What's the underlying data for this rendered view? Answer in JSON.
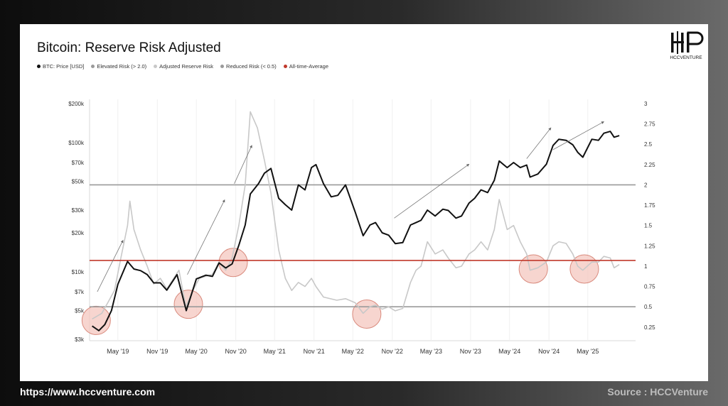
{
  "footer": {
    "url": "https://www.hccventure.com",
    "source": "Source : HCCVenture"
  },
  "logo": {
    "text": "HCCVENTURE",
    "icon": "hcc-monogram-icon"
  },
  "colors": {
    "price": "#111111",
    "elevated": "#9a9a9a",
    "adjusted": "#c8c8c8",
    "reduced": "#9a9a9a",
    "average": "#c0392b",
    "highlight": "#f4c7bf"
  },
  "chart_data": {
    "type": "line",
    "title": "Bitcoin: Reserve Risk Adjusted",
    "legend": [
      {
        "name": "BTC: Price [USD]",
        "color": "#111111"
      },
      {
        "name": "Elevated Risk (> 2.0)",
        "color": "#9a9a9a"
      },
      {
        "name": "Adjusted Reserve Risk",
        "color": "#c8c8c8"
      },
      {
        "name": "Reduced Risk (< 0.5)",
        "color": "#9a9a9a"
      },
      {
        "name": "All-time-Average",
        "color": "#c0392b"
      }
    ],
    "legend_position": "top-left",
    "x_ticks": [
      "May '19",
      "Nov '19",
      "May '20",
      "Nov '20",
      "May '21",
      "Nov '21",
      "May '22",
      "Nov '22",
      "May '23",
      "Nov '23",
      "May '24",
      "Nov '24",
      "May '25"
    ],
    "y_left": {
      "scale": "log",
      "range": [
        3000,
        200000
      ],
      "ticks": [
        "$3k",
        "$5k",
        "$7k",
        "$10k",
        "$20k",
        "$30k",
        "$50k",
        "$70k",
        "$100k",
        "$200k"
      ]
    },
    "y_right": {
      "scale": "linear",
      "range": [
        0.1,
        3
      ],
      "ticks": [
        "0.25",
        "0.5",
        "0.75",
        "1",
        "1.25",
        "1.5",
        "1.75",
        "2",
        "2.25",
        "2.5",
        "2.75",
        "3"
      ]
    },
    "elevated_risk_level": 2.0,
    "reduced_risk_level": 0.5,
    "all_time_average": 1.07,
    "price": {
      "name": "BTC: Price [USD]",
      "points": [
        [
          "2019-01-01",
          3800
        ],
        [
          "2019-02-01",
          3500
        ],
        [
          "2019-03-01",
          3900
        ],
        [
          "2019-04-01",
          5000
        ],
        [
          "2019-05-01",
          8000
        ],
        [
          "2019-06-15",
          12000
        ],
        [
          "2019-07-15",
          10500
        ],
        [
          "2019-08-15",
          10200
        ],
        [
          "2019-09-15",
          9500
        ],
        [
          "2019-10-15",
          8200
        ],
        [
          "2019-11-15",
          8200
        ],
        [
          "2019-12-15",
          7200
        ],
        [
          "2020-02-01",
          9500
        ],
        [
          "2020-03-15",
          5000
        ],
        [
          "2020-05-01",
          8800
        ],
        [
          "2020-06-15",
          9400
        ],
        [
          "2020-07-15",
          9200
        ],
        [
          "2020-08-15",
          11700
        ],
        [
          "2020-09-15",
          10700
        ],
        [
          "2020-10-15",
          11500
        ],
        [
          "2020-11-15",
          16000
        ],
        [
          "2020-12-15",
          23000
        ],
        [
          "2021-01-08",
          40000
        ],
        [
          "2021-02-15",
          48000
        ],
        [
          "2021-03-15",
          58000
        ],
        [
          "2021-04-14",
          63000
        ],
        [
          "2021-05-20",
          37000
        ],
        [
          "2021-06-20",
          33000
        ],
        [
          "2021-07-20",
          30000
        ],
        [
          "2021-08-20",
          47000
        ],
        [
          "2021-09-20",
          43000
        ],
        [
          "2021-10-20",
          64000
        ],
        [
          "2021-11-10",
          67500
        ],
        [
          "2021-12-15",
          48000
        ],
        [
          "2022-01-20",
          38000
        ],
        [
          "2022-02-20",
          39000
        ],
        [
          "2022-03-28",
          47000
        ],
        [
          "2022-05-12",
          29000
        ],
        [
          "2022-06-18",
          19000
        ],
        [
          "2022-07-20",
          23000
        ],
        [
          "2022-08-15",
          24000
        ],
        [
          "2022-09-15",
          20000
        ],
        [
          "2022-10-15",
          19200
        ],
        [
          "2022-11-15",
          16500
        ],
        [
          "2022-12-20",
          16800
        ],
        [
          "2023-01-25",
          23000
        ],
        [
          "2023-02-20",
          24000
        ],
        [
          "2023-03-15",
          25000
        ],
        [
          "2023-04-14",
          30000
        ],
        [
          "2023-05-20",
          27000
        ],
        [
          "2023-06-25",
          30500
        ],
        [
          "2023-07-20",
          29800
        ],
        [
          "2023-08-25",
          26000
        ],
        [
          "2023-09-20",
          27000
        ],
        [
          "2023-10-25",
          34000
        ],
        [
          "2023-11-20",
          37000
        ],
        [
          "2023-12-20",
          43000
        ],
        [
          "2024-01-20",
          41000
        ],
        [
          "2024-02-20",
          51000
        ],
        [
          "2024-03-14",
          72000
        ],
        [
          "2024-04-20",
          64000
        ],
        [
          "2024-05-20",
          70000
        ],
        [
          "2024-06-20",
          64000
        ],
        [
          "2024-07-20",
          67000
        ],
        [
          "2024-08-05",
          54000
        ],
        [
          "2024-09-10",
          57000
        ],
        [
          "2024-10-20",
          68000
        ],
        [
          "2024-11-20",
          95000
        ],
        [
          "2024-12-17",
          106000
        ],
        [
          "2025-01-20",
          104000
        ],
        [
          "2025-02-20",
          96000
        ],
        [
          "2025-03-15",
          84000
        ],
        [
          "2025-04-08",
          77000
        ],
        [
          "2025-05-20",
          106000
        ],
        [
          "2025-06-20",
          104000
        ],
        [
          "2025-07-15",
          118000
        ],
        [
          "2025-08-14",
          122000
        ],
        [
          "2025-09-01",
          110000
        ],
        [
          "2025-09-25",
          113000
        ]
      ]
    },
    "adjusted_reserve_risk": {
      "name": "Adjusted Reserve Risk",
      "points": [
        [
          "2019-01-01",
          0.35
        ],
        [
          "2019-02-15",
          0.42
        ],
        [
          "2019-03-15",
          0.55
        ],
        [
          "2019-04-15",
          0.7
        ],
        [
          "2019-05-15",
          1.1
        ],
        [
          "2019-06-15",
          1.5
        ],
        [
          "2019-06-26",
          1.8
        ],
        [
          "2019-07-15",
          1.45
        ],
        [
          "2019-08-15",
          1.2
        ],
        [
          "2019-09-15",
          1.0
        ],
        [
          "2019-10-15",
          0.78
        ],
        [
          "2019-11-15",
          0.85
        ],
        [
          "2019-12-15",
          0.72
        ],
        [
          "2020-02-10",
          0.95
        ],
        [
          "2020-03-13",
          0.5
        ],
        [
          "2020-04-15",
          0.7
        ],
        [
          "2020-05-15",
          0.85
        ],
        [
          "2020-07-15",
          0.9
        ],
        [
          "2020-08-15",
          1.05
        ],
        [
          "2020-09-15",
          0.95
        ],
        [
          "2020-10-15",
          1.1
        ],
        [
          "2020-11-15",
          1.5
        ],
        [
          "2020-12-15",
          2.0
        ],
        [
          "2021-01-08",
          2.9
        ],
        [
          "2021-02-10",
          2.7
        ],
        [
          "2021-03-15",
          2.3
        ],
        [
          "2021-04-14",
          1.9
        ],
        [
          "2021-05-20",
          1.2
        ],
        [
          "2021-06-20",
          0.85
        ],
        [
          "2021-07-20",
          0.7
        ],
        [
          "2021-08-20",
          0.8
        ],
        [
          "2021-09-20",
          0.75
        ],
        [
          "2021-10-20",
          0.85
        ],
        [
          "2021-11-10",
          0.75
        ],
        [
          "2021-12-15",
          0.62
        ],
        [
          "2022-02-15",
          0.58
        ],
        [
          "2022-03-28",
          0.6
        ],
        [
          "2022-05-12",
          0.55
        ],
        [
          "2022-06-18",
          0.42
        ],
        [
          "2022-07-20",
          0.5
        ],
        [
          "2022-08-15",
          0.52
        ],
        [
          "2022-09-15",
          0.47
        ],
        [
          "2022-10-15",
          0.5
        ],
        [
          "2022-11-15",
          0.45
        ],
        [
          "2022-12-20",
          0.48
        ],
        [
          "2023-01-25",
          0.8
        ],
        [
          "2023-02-20",
          0.95
        ],
        [
          "2023-03-15",
          1.0
        ],
        [
          "2023-04-14",
          1.3
        ],
        [
          "2023-05-20",
          1.15
        ],
        [
          "2023-06-25",
          1.2
        ],
        [
          "2023-07-20",
          1.1
        ],
        [
          "2023-08-25",
          0.98
        ],
        [
          "2023-09-20",
          1.0
        ],
        [
          "2023-10-25",
          1.15
        ],
        [
          "2023-11-20",
          1.2
        ],
        [
          "2023-12-20",
          1.3
        ],
        [
          "2024-01-20",
          1.2
        ],
        [
          "2024-02-20",
          1.45
        ],
        [
          "2024-03-14",
          1.82
        ],
        [
          "2024-04-20",
          1.45
        ],
        [
          "2024-05-20",
          1.5
        ],
        [
          "2024-06-20",
          1.3
        ],
        [
          "2024-07-20",
          1.15
        ],
        [
          "2024-08-05",
          0.95
        ],
        [
          "2024-09-10",
          0.98
        ],
        [
          "2024-10-20",
          1.05
        ],
        [
          "2024-11-20",
          1.25
        ],
        [
          "2024-12-17",
          1.3
        ],
        [
          "2025-01-20",
          1.28
        ],
        [
          "2025-02-20",
          1.15
        ],
        [
          "2025-03-15",
          1.0
        ],
        [
          "2025-04-08",
          0.95
        ],
        [
          "2025-05-20",
          1.05
        ],
        [
          "2025-06-20",
          1.05
        ],
        [
          "2025-07-15",
          1.12
        ],
        [
          "2025-08-14",
          1.1
        ],
        [
          "2025-09-01",
          0.98
        ],
        [
          "2025-09-25",
          1.02
        ]
      ]
    }
  }
}
